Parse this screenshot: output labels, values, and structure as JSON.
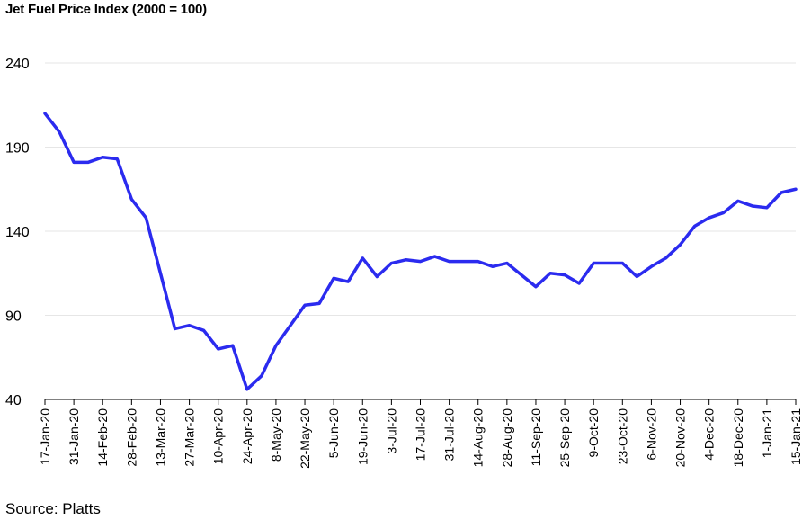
{
  "title": "Jet Fuel Price Index (2000 = 100)",
  "source": "Source: Platts",
  "colors": {
    "line": "#2b2bef",
    "grid": "#e6e6e6",
    "axis": "#000000"
  },
  "chart_data": {
    "type": "line",
    "title": "Jet Fuel Price Index (2000 = 100)",
    "xlabel": "",
    "ylabel": "",
    "ylim": [
      40,
      240
    ],
    "yticks": [
      40,
      90,
      140,
      190,
      240
    ],
    "grid": "horizontal",
    "x": [
      "17-Jan-20",
      "24-Jan-20",
      "31-Jan-20",
      "7-Feb-20",
      "14-Feb-20",
      "21-Feb-20",
      "28-Feb-20",
      "6-Mar-20",
      "13-Mar-20",
      "20-Mar-20",
      "27-Mar-20",
      "3-Apr-20",
      "10-Apr-20",
      "17-Apr-20",
      "24-Apr-20",
      "1-May-20",
      "8-May-20",
      "15-May-20",
      "22-May-20",
      "29-May-20",
      "5-Jun-20",
      "12-Jun-20",
      "19-Jun-20",
      "26-Jun-20",
      "3-Jul-20",
      "10-Jul-20",
      "17-Jul-20",
      "24-Jul-20",
      "31-Jul-20",
      "7-Aug-20",
      "14-Aug-20",
      "21-Aug-20",
      "28-Aug-20",
      "4-Sep-20",
      "11-Sep-20",
      "18-Sep-20",
      "25-Sep-20",
      "2-Oct-20",
      "9-Oct-20",
      "16-Oct-20",
      "23-Oct-20",
      "30-Oct-20",
      "6-Nov-20",
      "13-Nov-20",
      "20-Nov-20",
      "27-Nov-20",
      "4-Dec-20",
      "11-Dec-20",
      "18-Dec-20",
      "25-Dec-20",
      "1-Jan-21",
      "8-Jan-21",
      "15-Jan-21"
    ],
    "x_tick_labels": [
      "17-Jan-20",
      "31-Jan-20",
      "14-Feb-20",
      "28-Feb-20",
      "13-Mar-20",
      "27-Mar-20",
      "10-Apr-20",
      "24-Apr-20",
      "8-May-20",
      "22-May-20",
      "5-Jun-20",
      "19-Jun-20",
      "3-Jul-20",
      "17-Jul-20",
      "31-Jul-20",
      "14-Aug-20",
      "28-Aug-20",
      "11-Sep-20",
      "25-Sep-20",
      "9-Oct-20",
      "23-Oct-20",
      "6-Nov-20",
      "20-Nov-20",
      "4-Dec-20",
      "18-Dec-20",
      "1-Jan-21",
      "15-Jan-21"
    ],
    "series": [
      {
        "values": [
          210,
          199,
          181,
          181,
          184,
          183,
          159,
          148,
          115,
          82,
          84,
          81,
          70,
          72,
          46,
          54,
          72,
          84,
          96,
          97,
          112,
          110,
          124,
          113,
          121,
          123,
          122,
          125,
          122,
          122,
          122,
          119,
          121,
          114,
          107,
          115,
          114,
          109,
          121,
          121,
          121,
          113,
          119,
          124,
          132,
          143,
          148,
          151,
          158,
          155,
          154,
          163,
          165
        ]
      }
    ]
  }
}
